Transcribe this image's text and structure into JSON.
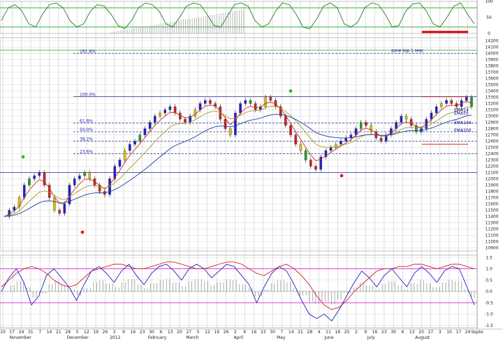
{
  "chart_data": [
    {
      "type": "line",
      "panel": "stochastic",
      "y_ticks": [
        "100",
        "50",
        "0"
      ],
      "ylim": [
        0,
        100
      ],
      "levels": [
        80,
        20
      ],
      "series": [
        {
          "color": "#208020",
          "values": [
            40,
            80,
            90,
            70,
            30,
            20,
            60,
            90,
            95,
            80,
            40,
            20,
            30,
            70,
            90,
            85,
            60,
            25,
            15,
            40,
            80,
            95,
            90,
            70,
            30,
            20,
            50,
            85,
            95,
            90,
            60,
            25,
            20,
            55,
            90,
            95,
            85,
            40,
            20,
            30,
            70,
            95,
            90,
            60,
            20,
            15,
            45,
            85,
            95,
            80,
            30,
            20,
            35,
            80,
            95,
            90,
            60,
            20,
            25,
            70,
            92,
            95,
            70,
            30,
            20,
            50,
            85,
            95,
            60,
            30
          ]
        }
      ],
      "overlay_bar_color": "#e00000"
    },
    {
      "type": "candlestick",
      "panel": "price",
      "y_ticks": [
        "14200",
        "14100",
        "14000",
        "13900",
        "13800",
        "13700",
        "13600",
        "13500",
        "13400",
        "13300",
        "13200",
        "13100",
        "13000",
        "12900",
        "12800",
        "12700",
        "12600",
        "12500",
        "12400",
        "12300",
        "12200",
        "12100",
        "12000",
        "11900",
        "11800",
        "11700",
        "11600",
        "11500",
        "11400",
        "11300",
        "11200",
        "11100",
        "11000",
        "10900"
      ],
      "ylim": [
        10850,
        14250
      ],
      "fib_levels": [
        {
          "label": "161.8%",
          "value": 14000
        },
        {
          "label": "100.0%",
          "value": 13310
        },
        {
          "label": "61.8%",
          "value": 12890
        },
        {
          "label": "50.0%",
          "value": 12750
        },
        {
          "label": "38.2%",
          "value": 12600
        },
        {
          "label": "23.6%",
          "value": 12400
        }
      ],
      "horizontal_lines": [
        12100,
        14050
      ],
      "annotations": [
        {
          "text": "EMA14",
          "value": 13080
        },
        {
          "text": "EMA55",
          "value": 13020
        },
        {
          "text": "EMA144",
          "value": 12870
        },
        {
          "text": "EMA200",
          "value": 12750
        },
        {
          "text": "zone top 1 resc",
          "value": 14020
        }
      ],
      "close": [
        11400,
        11500,
        11550,
        11700,
        11900,
        12000,
        12050,
        12100,
        11900,
        11700,
        11500,
        11450,
        11600,
        11900,
        12000,
        12050,
        12100,
        12000,
        11900,
        11800,
        11750,
        12000,
        12200,
        12300,
        12450,
        12550,
        12600,
        12700,
        12800,
        12900,
        13000,
        13050,
        13100,
        13150,
        13050,
        12950,
        12900,
        13000,
        13100,
        13200,
        13250,
        13200,
        13150,
        12950,
        12800,
        12700,
        13050,
        13200,
        13250,
        13200,
        13100,
        13150,
        13300,
        13250,
        13150,
        13000,
        12850,
        12700,
        12550,
        12450,
        12300,
        12200,
        12150,
        12350,
        12450,
        12500,
        12550,
        12600,
        12650,
        12700,
        12800,
        12900,
        12850,
        12750,
        12650,
        12600,
        12700,
        12800,
        12900,
        13000,
        12950,
        12850,
        12750,
        12800,
        12950,
        13050,
        13150,
        13200,
        13250,
        13200,
        13150,
        13250,
        13300,
        13150
      ],
      "series_colors": {
        "up": "#2020d0",
        "down": "#d02020",
        "neutral": "#e0c000",
        "green_bar": "#20a020",
        "ema_short": "#c03030",
        "ema_mid": "#a0a020",
        "ema_long": "#2040a0"
      }
    },
    {
      "type": "line",
      "panel": "oscillator",
      "y_ticks": [
        "1.5",
        "1.0",
        "0.5",
        "0.0",
        "-0.5",
        "-1.0",
        "-1.5"
      ],
      "ylim": [
        -1.6,
        1.6
      ],
      "levels": [
        1.0,
        -0.5
      ],
      "series": [
        {
          "color": "#d02020",
          "values": [
            0.2,
            0.5,
            0.8,
            1.0,
            1.1,
            1.0,
            0.8,
            0.5,
            0.3,
            0.2,
            0.3,
            0.6,
            0.9,
            1.0,
            1.1,
            1.2,
            1.2,
            1.1,
            1.0,
            1.0,
            1.1,
            1.2,
            1.3,
            1.3,
            1.2,
            1.1,
            1.0,
            1.0,
            1.1,
            1.2,
            1.3,
            1.3,
            1.2,
            1.0,
            0.8,
            0.7,
            0.9,
            1.1,
            1.2,
            1.0,
            0.7,
            0.3,
            -0.2,
            -0.6,
            -0.8,
            -0.7,
            -0.4,
            0.0,
            0.3,
            0.6,
            0.9,
            1.0,
            1.0,
            1.1,
            1.1,
            1.2,
            1.2,
            1.1,
            1.0,
            1.1,
            1.2,
            1.2,
            1.1,
            1.0
          ]
        },
        {
          "color": "#2020c0",
          "values": [
            0.0,
            0.6,
            1.0,
            0.4,
            -0.6,
            -0.2,
            0.7,
            1.0,
            0.6,
            0.2,
            -0.4,
            0.3,
            0.9,
            1.1,
            0.8,
            0.4,
            0.9,
            1.2,
            0.7,
            0.3,
            0.8,
            1.1,
            1.2,
            0.9,
            0.5,
            1.0,
            1.2,
            1.0,
            0.6,
            0.9,
            1.2,
            1.1,
            0.7,
            0.3,
            -0.5,
            0.2,
            0.8,
            1.1,
            0.9,
            0.3,
            -0.4,
            -1.0,
            -1.2,
            -1.0,
            -1.3,
            -0.8,
            -0.2,
            0.4,
            0.9,
            0.6,
            0.2,
            0.7,
            1.0,
            0.6,
            0.2,
            0.8,
            1.1,
            0.8,
            0.4,
            0.9,
            1.1,
            1.0,
            0.2,
            -0.6
          ]
        }
      ],
      "histogram_color": "#888888"
    }
  ],
  "x_axis": {
    "day_ticks": [
      "10",
      "17",
      "24",
      "31",
      "7",
      "14",
      "21",
      "28",
      "5",
      "12",
      "19",
      "26",
      "2",
      "9",
      "16",
      "23",
      "30",
      "6",
      "13",
      "20",
      "27",
      "5",
      "12",
      "19",
      "26",
      "2",
      "9",
      "16",
      "23",
      "30",
      "7",
      "14",
      "21",
      "28",
      "4",
      "11",
      "18",
      "25",
      "2",
      "9",
      "16",
      "23",
      "30",
      "6",
      "13",
      "20",
      "27",
      "3",
      "10",
      "17",
      "24",
      "Septe"
    ],
    "month_labels": [
      "November",
      "December",
      "2012",
      "February",
      "March",
      "April",
      "May",
      "June",
      "July",
      "August"
    ],
    "month_label_positions": [
      "2%",
      "14%",
      "23%",
      "31%",
      "39%",
      "49%",
      "58%",
      "68%",
      "77%",
      "87%"
    ]
  }
}
